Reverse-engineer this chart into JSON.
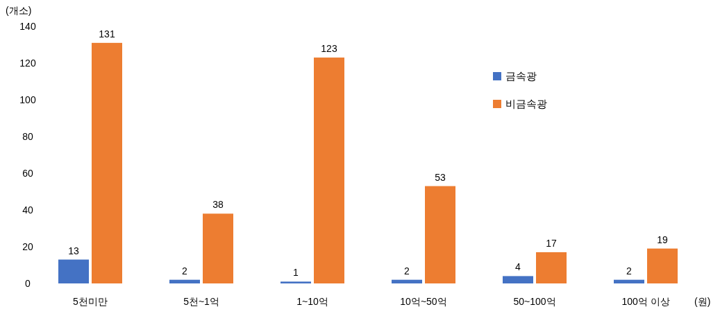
{
  "chart_data": {
    "type": "bar",
    "ylabel": "(개소)",
    "xlabel": "(원)",
    "categories": [
      "5천미만",
      "5천~1억",
      "1~10억",
      "10억~50억",
      "50~100억",
      "100억 이상"
    ],
    "series": [
      {
        "name": "금속광",
        "color": "#4472c4",
        "values": [
          13,
          2,
          1,
          2,
          4,
          2
        ]
      },
      {
        "name": "비금속광",
        "color": "#ed7d31",
        "values": [
          131,
          38,
          123,
          53,
          17,
          19
        ]
      }
    ],
    "ylim": [
      0,
      140
    ],
    "yticks": [
      0,
      20,
      40,
      60,
      80,
      100,
      120,
      140
    ],
    "data_labels": true,
    "grid": false,
    "legend": "top right"
  }
}
